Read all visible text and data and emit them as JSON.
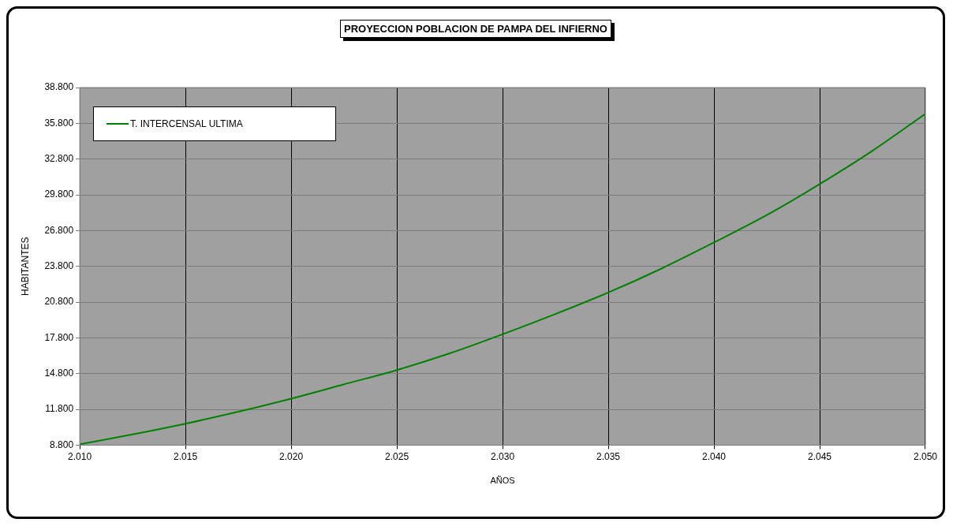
{
  "chart_data": {
    "type": "line",
    "title": "PROYECCION POBLACION DE PAMPA DEL INFIERNO",
    "xlabel": "AÑOS",
    "ylabel": "HABITANTES",
    "x": [
      2010,
      2012.5,
      2015,
      2017.5,
      2020,
      2022.5,
      2025,
      2027.5,
      2030,
      2032.5,
      2035,
      2037.5,
      2040,
      2042.5,
      2045,
      2047.5,
      2050
    ],
    "series": [
      {
        "name": "T. INTERCENSAL ULTIMA",
        "color": "#008000",
        "values": [
          8870,
          9700,
          10600,
          11600,
          12700,
          13900,
          15100,
          16500,
          18100,
          19800,
          21600,
          23600,
          25800,
          28100,
          30700,
          33500,
          36600
        ]
      }
    ],
    "xlim": [
      2010,
      2050
    ],
    "xticks": [
      {
        "value": 2010,
        "label": "2.010"
      },
      {
        "value": 2015,
        "label": "2.015"
      },
      {
        "value": 2020,
        "label": "2.020"
      },
      {
        "value": 2025,
        "label": "2.025"
      },
      {
        "value": 2030,
        "label": "2.030"
      },
      {
        "value": 2035,
        "label": "2.035"
      },
      {
        "value": 2040,
        "label": "2.040"
      },
      {
        "value": 2045,
        "label": "2.045"
      },
      {
        "value": 2050,
        "label": "2.050"
      }
    ],
    "ylim": [
      8800,
      38800
    ],
    "yticks": [
      {
        "value": 8800,
        "label": "8.800"
      },
      {
        "value": 11800,
        "label": "11.800"
      },
      {
        "value": 14800,
        "label": "14.800"
      },
      {
        "value": 17800,
        "label": "17.800"
      },
      {
        "value": 20800,
        "label": "20.800"
      },
      {
        "value": 23800,
        "label": "23.800"
      },
      {
        "value": 26800,
        "label": "26.800"
      },
      {
        "value": 29800,
        "label": "29.800"
      },
      {
        "value": 32800,
        "label": "32.800"
      },
      {
        "value": 35800,
        "label": "35.800"
      },
      {
        "value": 38800,
        "label": "38.800"
      }
    ],
    "grid": true,
    "legend": "top left",
    "marker": "none"
  }
}
